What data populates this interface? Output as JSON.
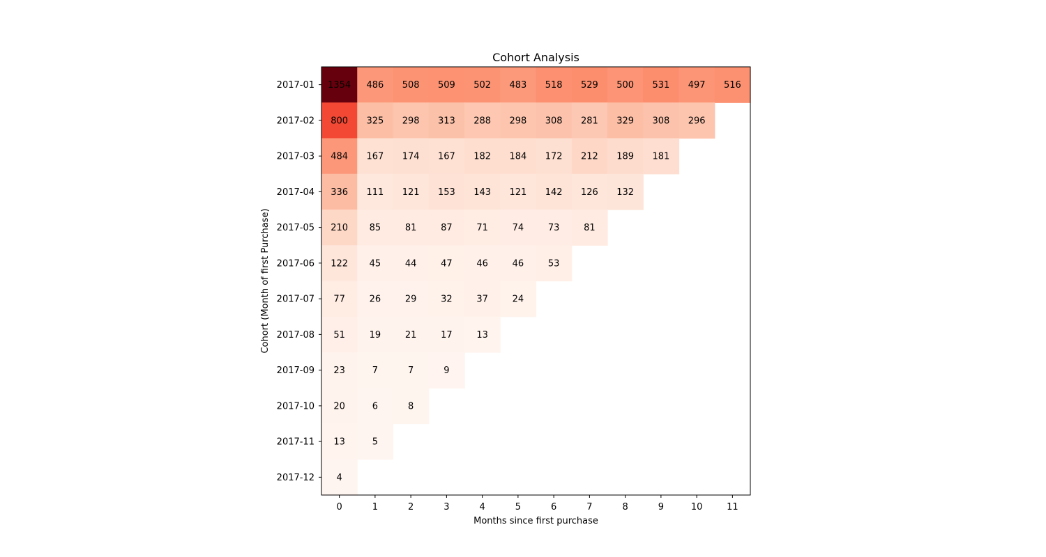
{
  "chart_data": {
    "type": "heatmap",
    "title": "Cohort Analysis",
    "xlabel": "Months since first purchase",
    "ylabel": "Cohort (Month of first Purchase)",
    "x_categories": [
      "0",
      "1",
      "2",
      "3",
      "4",
      "5",
      "6",
      "7",
      "8",
      "9",
      "10",
      "11"
    ],
    "y_categories": [
      "2017-01",
      "2017-02",
      "2017-03",
      "2017-04",
      "2017-05",
      "2017-06",
      "2017-07",
      "2017-08",
      "2017-09",
      "2017-10",
      "2017-11",
      "2017-12"
    ],
    "values": [
      [
        1354,
        486,
        508,
        509,
        502,
        483,
        518,
        529,
        500,
        531,
        497,
        516
      ],
      [
        800,
        325,
        298,
        313,
        288,
        298,
        308,
        281,
        329,
        308,
        296,
        null
      ],
      [
        484,
        167,
        174,
        167,
        182,
        184,
        172,
        212,
        189,
        181,
        null,
        null
      ],
      [
        336,
        111,
        121,
        153,
        143,
        121,
        142,
        126,
        132,
        null,
        null,
        null
      ],
      [
        210,
        85,
        81,
        87,
        71,
        74,
        73,
        81,
        null,
        null,
        null,
        null
      ],
      [
        122,
        45,
        44,
        47,
        46,
        46,
        53,
        null,
        null,
        null,
        null,
        null
      ],
      [
        77,
        26,
        29,
        32,
        37,
        24,
        null,
        null,
        null,
        null,
        null,
        null
      ],
      [
        51,
        19,
        21,
        17,
        13,
        null,
        null,
        null,
        null,
        null,
        null,
        null
      ],
      [
        23,
        7,
        7,
        9,
        null,
        null,
        null,
        null,
        null,
        null,
        null,
        null
      ],
      [
        20,
        6,
        8,
        null,
        null,
        null,
        null,
        null,
        null,
        null,
        null,
        null
      ],
      [
        13,
        5,
        null,
        null,
        null,
        null,
        null,
        null,
        null,
        null,
        null,
        null
      ],
      [
        4,
        null,
        null,
        null,
        null,
        null,
        null,
        null,
        null,
        null,
        null,
        null
      ]
    ],
    "colormap": "Reds",
    "value_range": [
      4,
      1354
    ],
    "grid": false
  }
}
